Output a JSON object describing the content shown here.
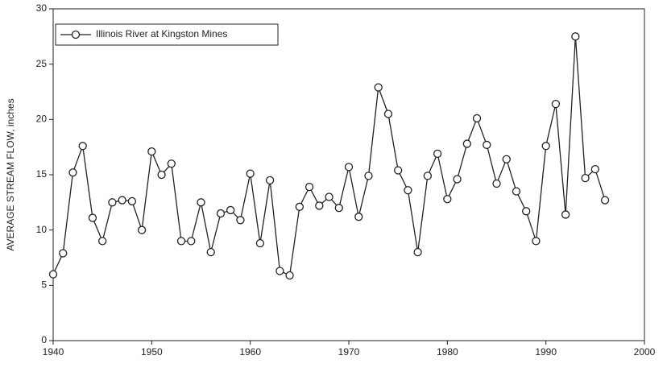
{
  "chart_data": {
    "type": "line",
    "ylabel": "AVERAGE STREAM FLOW, inches",
    "x": [
      1940,
      1941,
      1942,
      1943,
      1944,
      1945,
      1946,
      1947,
      1948,
      1949,
      1950,
      1951,
      1952,
      1953,
      1954,
      1955,
      1956,
      1957,
      1958,
      1959,
      1960,
      1961,
      1962,
      1963,
      1964,
      1965,
      1966,
      1967,
      1968,
      1969,
      1970,
      1971,
      1972,
      1973,
      1974,
      1975,
      1976,
      1977,
      1978,
      1979,
      1980,
      1981,
      1982,
      1983,
      1984,
      1985,
      1986,
      1987,
      1988,
      1989,
      1990,
      1991,
      1992,
      1993,
      1994,
      1995,
      1996
    ],
    "series": [
      {
        "name": "Illinois River at Kingston Mines",
        "color": "#222222",
        "values": [
          6.0,
          7.9,
          15.2,
          17.6,
          11.1,
          9.0,
          12.5,
          12.7,
          12.6,
          10.0,
          17.1,
          15.0,
          16.0,
          9.0,
          9.0,
          12.5,
          8.0,
          11.5,
          11.8,
          10.9,
          15.1,
          8.8,
          14.5,
          6.3,
          5.9,
          12.1,
          13.9,
          12.2,
          13.0,
          12.0,
          15.7,
          11.2,
          14.9,
          22.9,
          20.5,
          15.4,
          13.6,
          8.0,
          14.9,
          16.9,
          12.8,
          14.6,
          17.8,
          20.1,
          17.7,
          14.2,
          16.4,
          13.5,
          11.7,
          9.0,
          17.6,
          21.4,
          11.4,
          27.5,
          14.7,
          15.5,
          12.7
        ]
      }
    ],
    "xlim": [
      1940,
      2000
    ],
    "xticks": [
      1940,
      1950,
      1960,
      1970,
      1980,
      1990,
      2000
    ],
    "ylim": [
      0,
      30
    ],
    "yticks": [
      0,
      5,
      10,
      15,
      20,
      25,
      30
    ],
    "legend": "upper left"
  }
}
